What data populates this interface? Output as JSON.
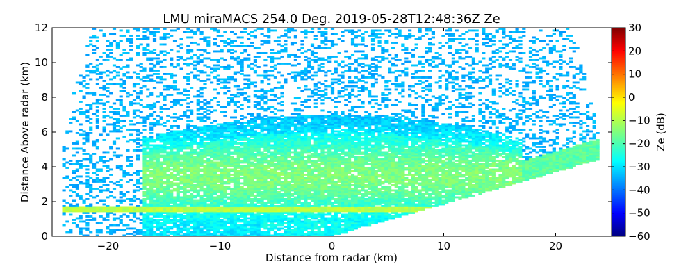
{
  "chart_data": {
    "type": "heatmap",
    "title": "LMU miraMACS 254.0 Deg. 2019-05-28T12:48:36Z  Ze",
    "xlabel": "Distance from radar (km)",
    "ylabel": "Distance Above radar  (km)",
    "xlim": [
      -25,
      25
    ],
    "ylim": [
      0,
      12
    ],
    "xticks": [
      -20,
      -10,
      0,
      10,
      20
    ],
    "xtick_labels": [
      "−20",
      "−10",
      "0",
      "10",
      "20"
    ],
    "yticks": [
      0,
      2,
      4,
      6,
      8,
      10,
      12
    ],
    "ytick_labels": [
      "0",
      "2",
      "4",
      "6",
      "8",
      "10",
      "12"
    ],
    "colorbar": {
      "label": "Ze (dB)",
      "range": [
        -60,
        30
      ],
      "ticks": [
        30,
        20,
        10,
        0,
        -10,
        -20,
        -30,
        -40,
        -50,
        -60
      ],
      "tick_labels": [
        "30",
        "20",
        "10",
        "0",
        "−10",
        "−20",
        "−30",
        "−40",
        "−50",
        "−60"
      ],
      "colormap": "jet"
    },
    "features": {
      "melting_layer_height_km": 1.6,
      "melting_layer_ze_db": -10,
      "cloud_top_km": 7,
      "background_noise_ze_db": -33,
      "scan_right_edge_top": [
        23.8,
        4.4
      ],
      "scan_left_edge_x_km": -24
    }
  },
  "colors": {
    "plot_background": "#ffffff",
    "axis_color": "#000000"
  }
}
